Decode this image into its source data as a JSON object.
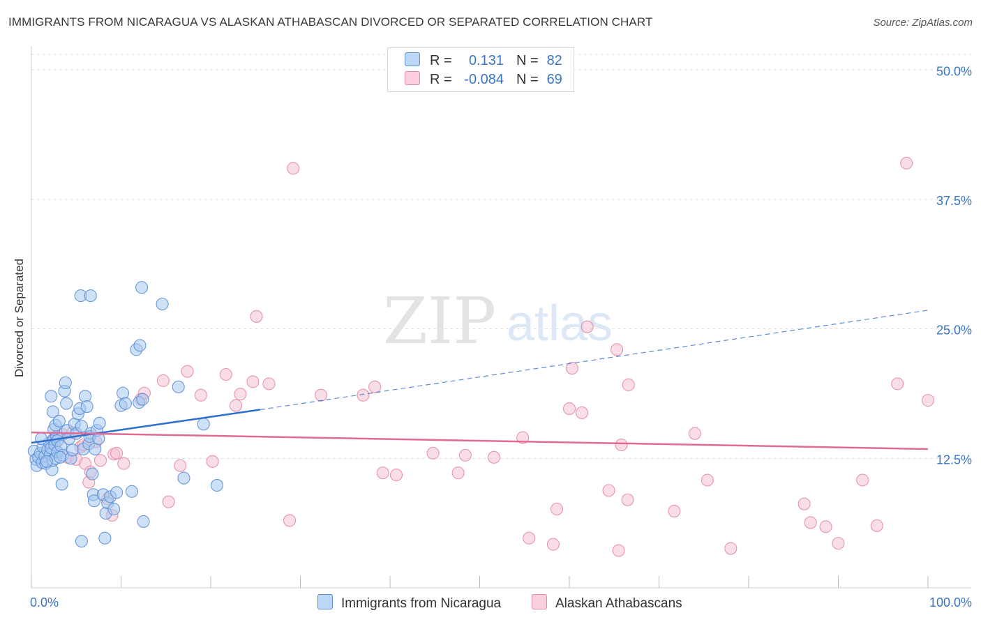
{
  "title": "IMMIGRANTS FROM NICARAGUA VS ALASKAN ATHABASCAN DIVORCED OR SEPARATED CORRELATION CHART",
  "source": "Source: ZipAtlas.com",
  "watermark": {
    "zip": "ZIP",
    "atlas": "atlas"
  },
  "legend": {
    "rows": [
      {
        "r_label": "R =",
        "r_value": "0.131",
        "n_label": "N =",
        "n_value": "82",
        "color": "#a8c8f0"
      },
      {
        "r_label": "R =",
        "r_value": "-0.084",
        "n_label": "N =",
        "n_value": "69",
        "color": "#f6bdd0"
      }
    ]
  },
  "colors": {
    "blue_fill": "#a8c8f0",
    "blue_stroke": "#5b8fd6",
    "blue_line": "#2f6fcc",
    "pink_fill": "#f6c3d3",
    "pink_stroke": "#e48aa6",
    "pink_line": "#e06a93",
    "grid": "#dcdcdc",
    "tick_label": "#3a75c4"
  },
  "chart_data": {
    "type": "scatter",
    "title": "IMMIGRANTS FROM NICARAGUA VS ALASKAN ATHABASCAN DIVORCED OR SEPARATED CORRELATION CHART",
    "xlabel": "",
    "ylabel": "Divorced or Separated",
    "xlim": [
      0,
      100
    ],
    "ylim": [
      0,
      51.5
    ],
    "x_ticks": [
      0,
      10,
      20,
      30,
      40,
      50,
      60,
      70,
      80,
      90,
      100
    ],
    "x_tick_labels": [
      {
        "value": 0,
        "label": "0.0%"
      },
      {
        "value": 100,
        "label": "100.0%"
      }
    ],
    "y_ticks": [
      12.5,
      25.0,
      37.5,
      50.0
    ],
    "y_tick_labels": [
      "12.5%",
      "25.0%",
      "37.5%",
      "50.0%"
    ],
    "grid": true,
    "series": [
      {
        "name": "Immigrants from Nicaragua",
        "r": 0.131,
        "n": 82,
        "trend": {
          "x0": 0,
          "y0": 14.0,
          "x1": 25.5,
          "y1": 17.2,
          "dash_to_x": 100,
          "dash_to_y": 26.8
        },
        "points": [
          [
            0.3,
            13.2
          ],
          [
            0.5,
            12.4
          ],
          [
            0.6,
            11.8
          ],
          [
            0.8,
            12.6
          ],
          [
            1.0,
            13.0
          ],
          [
            1.2,
            12.1
          ],
          [
            1.3,
            13.6
          ],
          [
            1.5,
            12.7
          ],
          [
            1.6,
            12.0
          ],
          [
            1.8,
            13.3
          ],
          [
            2.0,
            14.0
          ],
          [
            2.1,
            12.9
          ],
          [
            2.2,
            13.5
          ],
          [
            2.3,
            11.4
          ],
          [
            2.4,
            12.3
          ],
          [
            2.5,
            14.3
          ],
          [
            2.6,
            13.8
          ],
          [
            2.7,
            12.5
          ],
          [
            2.8,
            14.6
          ],
          [
            2.9,
            13.1
          ],
          [
            2.2,
            18.5
          ],
          [
            2.4,
            17.0
          ],
          [
            2.5,
            15.3
          ],
          [
            2.7,
            15.7
          ],
          [
            2.9,
            14.2
          ],
          [
            3.1,
            16.1
          ],
          [
            3.3,
            13.7
          ],
          [
            3.5,
            12.8
          ],
          [
            3.7,
            19.0
          ],
          [
            3.9,
            17.8
          ],
          [
            3.8,
            19.8
          ],
          [
            3.4,
            10.0
          ],
          [
            4.0,
            15.2
          ],
          [
            4.2,
            14.4
          ],
          [
            4.4,
            12.5
          ],
          [
            4.6,
            13.3
          ],
          [
            4.8,
            15.8
          ],
          [
            5.0,
            14.9
          ],
          [
            5.2,
            16.8
          ],
          [
            5.4,
            17.3
          ],
          [
            5.6,
            15.6
          ],
          [
            5.8,
            13.4
          ],
          [
            6.0,
            18.5
          ],
          [
            6.2,
            17.5
          ],
          [
            6.4,
            13.9
          ],
          [
            6.6,
            14.9
          ],
          [
            6.8,
            11.0
          ],
          [
            6.9,
            9.0
          ],
          [
            7.0,
            8.4
          ],
          [
            6.5,
            14.6
          ],
          [
            5.5,
            28.2
          ],
          [
            7.1,
            13.4
          ],
          [
            7.3,
            15.2
          ],
          [
            7.6,
            15.9
          ],
          [
            7.5,
            14.4
          ],
          [
            8.0,
            9.0
          ],
          [
            8.3,
            7.2
          ],
          [
            8.5,
            8.2
          ],
          [
            8.8,
            8.8
          ],
          [
            9.2,
            7.6
          ],
          [
            9.5,
            9.2
          ],
          [
            10.0,
            17.6
          ],
          [
            10.2,
            18.8
          ],
          [
            10.5,
            17.8
          ],
          [
            11.2,
            9.3
          ],
          [
            11.7,
            23.0
          ],
          [
            12.1,
            23.4
          ],
          [
            12.5,
            6.4
          ],
          [
            12.0,
            17.9
          ],
          [
            12.4,
            18.2
          ],
          [
            6.6,
            28.2
          ],
          [
            12.3,
            29.0
          ],
          [
            14.6,
            27.4
          ],
          [
            16.4,
            19.4
          ],
          [
            17.0,
            10.6
          ],
          [
            19.2,
            15.8
          ],
          [
            20.7,
            9.9
          ],
          [
            8.2,
            4.8
          ],
          [
            5.6,
            4.5
          ],
          [
            1.1,
            14.4
          ],
          [
            1.7,
            12.2
          ],
          [
            3.2,
            12.6
          ]
        ]
      },
      {
        "name": "Alaskan Athabascans",
        "r": -0.084,
        "n": 69,
        "trend": {
          "x0": 0,
          "y0": 15.0,
          "x1": 100,
          "y1": 13.4
        },
        "points": [
          [
            2.5,
            14.4
          ],
          [
            3.5,
            14.8
          ],
          [
            4.0,
            12.6
          ],
          [
            4.6,
            15.0
          ],
          [
            5.0,
            12.4
          ],
          [
            5.5,
            13.6
          ],
          [
            5.8,
            13.8
          ],
          [
            6.0,
            12.0
          ],
          [
            6.4,
            10.2
          ],
          [
            6.6,
            11.2
          ],
          [
            7.2,
            14.1
          ],
          [
            7.7,
            12.3
          ],
          [
            8.5,
            8.6
          ],
          [
            9.0,
            7.0
          ],
          [
            9.2,
            12.9
          ],
          [
            9.5,
            13.0
          ],
          [
            10.3,
            12.0
          ],
          [
            12.2,
            18.2
          ],
          [
            12.6,
            18.8
          ],
          [
            14.7,
            20.0
          ],
          [
            15.3,
            8.3
          ],
          [
            16.6,
            11.8
          ],
          [
            17.4,
            20.9
          ],
          [
            18.9,
            18.6
          ],
          [
            20.2,
            12.2
          ],
          [
            21.7,
            20.6
          ],
          [
            22.8,
            17.6
          ],
          [
            23.3,
            18.7
          ],
          [
            24.7,
            19.9
          ],
          [
            25.1,
            26.2
          ],
          [
            26.5,
            19.7
          ],
          [
            28.8,
            6.5
          ],
          [
            29.2,
            40.5
          ],
          [
            32.3,
            18.6
          ],
          [
            37.0,
            18.6
          ],
          [
            38.3,
            19.4
          ],
          [
            39.2,
            11.1
          ],
          [
            40.7,
            10.9
          ],
          [
            44.8,
            13.0
          ],
          [
            47.6,
            11.1
          ],
          [
            48.4,
            12.8
          ],
          [
            51.6,
            12.6
          ],
          [
            54.8,
            14.5
          ],
          [
            55.5,
            4.8
          ],
          [
            58.2,
            4.2
          ],
          [
            58.6,
            7.6
          ],
          [
            60.0,
            17.3
          ],
          [
            60.3,
            21.2
          ],
          [
            61.4,
            16.9
          ],
          [
            62.0,
            25.2
          ],
          [
            64.4,
            9.4
          ],
          [
            65.3,
            23.0
          ],
          [
            65.5,
            3.6
          ],
          [
            65.8,
            13.8
          ],
          [
            66.5,
            8.5
          ],
          [
            66.6,
            19.6
          ],
          [
            71.7,
            7.4
          ],
          [
            74.0,
            14.9
          ],
          [
            75.4,
            10.4
          ],
          [
            78.0,
            3.8
          ],
          [
            86.2,
            8.1
          ],
          [
            86.9,
            6.3
          ],
          [
            88.6,
            5.9
          ],
          [
            90.0,
            4.3
          ],
          [
            92.7,
            10.4
          ],
          [
            94.3,
            6.0
          ],
          [
            96.6,
            19.7
          ],
          [
            97.6,
            41.0
          ],
          [
            100.0,
            18.1
          ]
        ]
      }
    ]
  }
}
